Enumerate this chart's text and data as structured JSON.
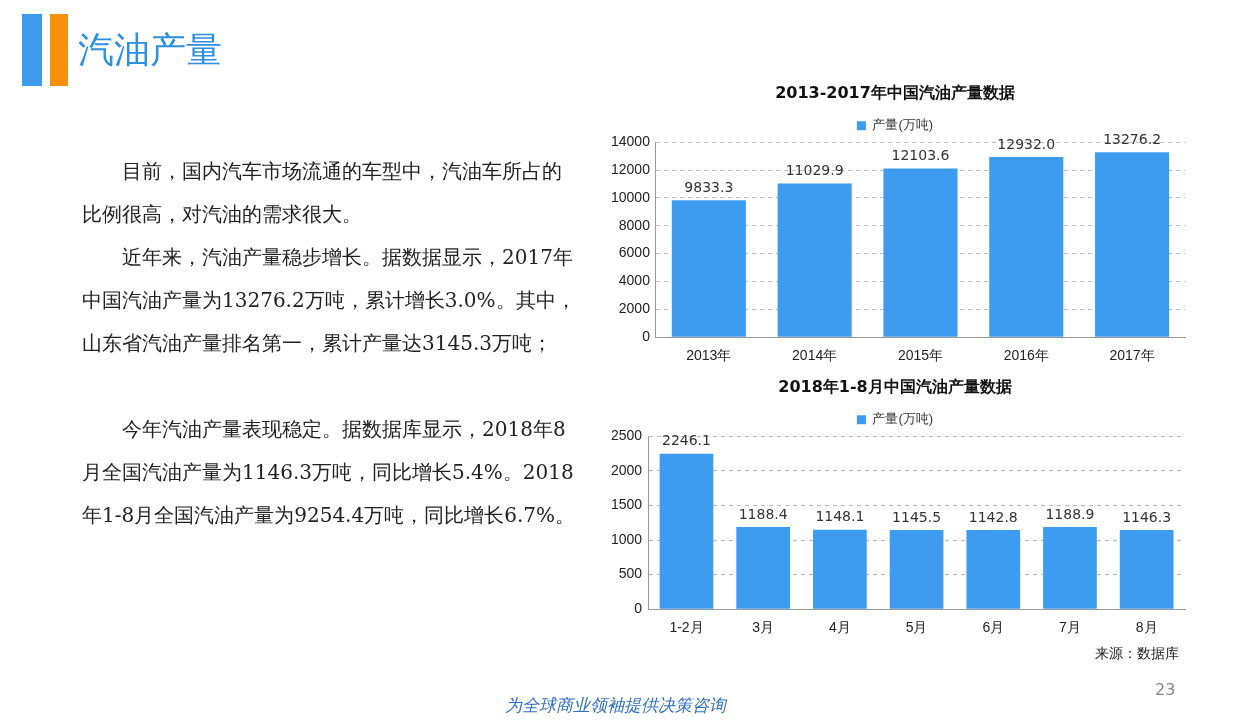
{
  "chart_data": [
    {
      "type": "other",
      "title": "汽油产量",
      "annotations": [
        "目前，国内汽车市场流通的车型中，汽油车所占的比例很高，对汽油的需求很大。",
        "近年来，汽油产量稳步增长。据数据显示，2017年中国汽油产量为13276.2万吨，累计增长3.0%。其中，山东省汽油产量排名第一，累计产量达3145.3万吨；",
        "今年汽油产量表现稳定。据数据库显示，2018年8月全国汽油产量为1146.3万吨，同比增长5.4%。2018年1-8月全国汽油产量为9254.4万吨，同比增长6.7%。",
        "为全球商业领袖提供决策咨询",
        "23"
      ]
    },
    {
      "type": "bar",
      "title": "2013-2017年中国汽油产量数据",
      "categories": [
        "2013年",
        "2014年",
        "2015年",
        "2016年",
        "2017年"
      ],
      "series": [
        {
          "name": "产量(万吨)",
          "color": "#3d9cf0",
          "values": [
            9833.3,
            11029.9,
            12103.6,
            12932,
            13276.2
          ],
          "value_labels": [
            "9833.3",
            "11029.9",
            "12103.6",
            "12932.0",
            "13276.2"
          ]
        }
      ],
      "ylim": [
        0,
        14000
      ],
      "yticks": [
        0,
        2000,
        4000,
        6000,
        8000,
        10000,
        12000,
        14000
      ],
      "grid": "y",
      "legend": "top"
    },
    {
      "type": "bar",
      "title": "2018年1-8月中国汽油产量数据",
      "categories": [
        "1-2月",
        "3月",
        "4月",
        "5月",
        "6月",
        "7月",
        "8月"
      ],
      "series": [
        {
          "name": "产量(万吨)",
          "color": "#3d9cf0",
          "values": [
            2246.1,
            1188.4,
            1148.1,
            1145.5,
            1142.8,
            1188.9,
            1146.3
          ],
          "value_labels": [
            "2246.1",
            "1188.4",
            "1148.1",
            "1145.5",
            "1142.8",
            "1188.9",
            "1146.3"
          ]
        }
      ],
      "ylim": [
        0,
        2500
      ],
      "yticks": [
        0,
        500,
        1000,
        1500,
        2000,
        2500
      ],
      "grid": "y",
      "legend": "top",
      "annotations": [
        "来源：数据库"
      ]
    }
  ]
}
